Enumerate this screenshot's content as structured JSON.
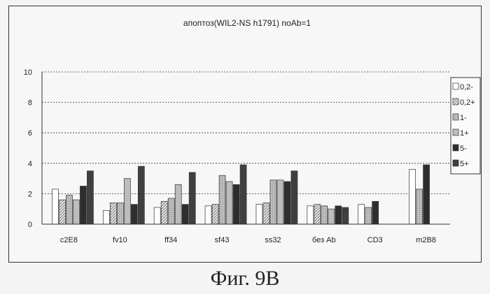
{
  "chart_data": {
    "type": "bar",
    "title": "апоптоз(WIL2-NS h1791) noAb=1",
    "xlabel": "",
    "ylabel": "",
    "ylim": [
      0,
      10
    ],
    "yticks": [
      "0",
      "2",
      "4",
      "6",
      "8",
      "10"
    ],
    "grid": true,
    "legend_position": "right",
    "categories": [
      "c2E8",
      "fv10",
      "ff34",
      "sf43",
      "ss32",
      "без Ab",
      "CD3",
      "m2B8"
    ],
    "series": [
      {
        "name": "0,2-",
        "pattern": "white",
        "values": [
          2.3,
          0.9,
          1.1,
          1.2,
          1.3,
          1.2,
          1.3,
          3.6
        ]
      },
      {
        "name": "0,2+",
        "pattern": "hatch-light",
        "values": [
          1.6,
          1.4,
          1.5,
          1.3,
          1.4,
          1.3,
          null,
          null
        ]
      },
      {
        "name": "1-",
        "pattern": "gray-dotted",
        "values": [
          1.9,
          1.4,
          1.7,
          3.2,
          2.9,
          1.2,
          1.1,
          2.3
        ]
      },
      {
        "name": "1+",
        "pattern": "hatch-medium",
        "values": [
          1.6,
          3.0,
          2.6,
          2.8,
          2.9,
          1.0,
          null,
          null
        ]
      },
      {
        "name": "5-",
        "pattern": "dark",
        "values": [
          2.5,
          1.3,
          1.3,
          2.6,
          2.8,
          1.2,
          1.5,
          3.9
        ]
      },
      {
        "name": "5+",
        "pattern": "hatch-dark",
        "values": [
          3.5,
          3.8,
          3.4,
          3.9,
          3.5,
          1.1,
          null,
          null
        ]
      }
    ],
    "colors": {
      "axis": "#333333",
      "grid": "#333333",
      "frame": "#333333"
    }
  },
  "caption": "Фиг. 9B"
}
